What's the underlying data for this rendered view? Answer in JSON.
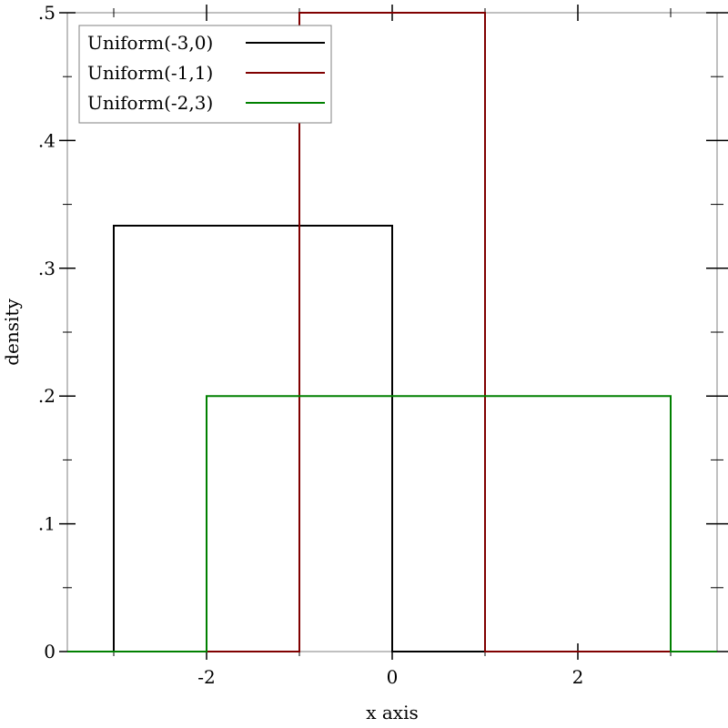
{
  "chart_data": {
    "type": "line",
    "xlabel": "x axis",
    "ylabel": "density",
    "xlim": [
      -3.5,
      3.5
    ],
    "ylim": [
      0,
      0.5
    ],
    "grid": false,
    "legend_position": "top-left",
    "x_ticks": [
      {
        "value": -2,
        "label": "-2"
      },
      {
        "value": 0,
        "label": "0"
      },
      {
        "value": 2,
        "label": "2"
      }
    ],
    "x_minor_ticks": [
      -3,
      -1,
      1,
      3
    ],
    "y_ticks": [
      {
        "value": 0,
        "label": "0"
      },
      {
        "value": 0.1,
        "label": ".1"
      },
      {
        "value": 0.2,
        "label": ".2"
      },
      {
        "value": 0.3,
        "label": ".3"
      },
      {
        "value": 0.4,
        "label": ".4"
      },
      {
        "value": 0.5,
        "label": ".5"
      }
    ],
    "y_minor_ticks": [
      0.05,
      0.15,
      0.25,
      0.35,
      0.45
    ],
    "series": [
      {
        "name": "Uniform(-3,0)",
        "color": "#000000",
        "points": [
          [
            -3.5,
            0
          ],
          [
            -3,
            0
          ],
          [
            -3,
            0.3333
          ],
          [
            0,
            0.3333
          ],
          [
            0,
            0
          ],
          [
            3.5,
            0
          ]
        ]
      },
      {
        "name": "Uniform(-1,1)",
        "color": "#800000",
        "points": [
          [
            -3.5,
            0
          ],
          [
            -1,
            0
          ],
          [
            -1,
            0.5
          ],
          [
            1,
            0.5
          ],
          [
            1,
            0
          ],
          [
            3.5,
            0
          ]
        ]
      },
      {
        "name": "Uniform(-2,3)",
        "color": "#008000",
        "points": [
          [
            -3.5,
            0
          ],
          [
            -2,
            0
          ],
          [
            -2,
            0.2
          ],
          [
            3,
            0.2
          ],
          [
            3,
            0
          ],
          [
            3.5,
            0
          ]
        ]
      }
    ]
  }
}
